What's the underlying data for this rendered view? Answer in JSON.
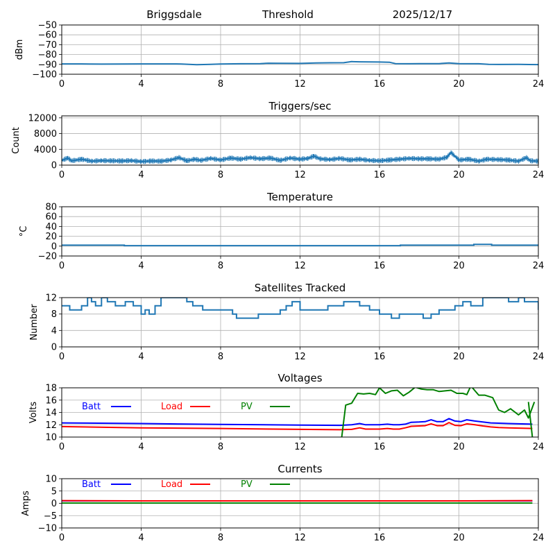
{
  "header": {
    "site": "Briggsdale",
    "mode": "Threshold",
    "date": "2025/12/17"
  },
  "colors": {
    "series_default": "#1f77b4",
    "batt": "#0000ff",
    "load": "#ff0000",
    "pv": "#008000",
    "grid": "#b0b0b0"
  },
  "chart_data": [
    {
      "type": "line",
      "title": "",
      "ylabel": "dBm",
      "xlabel": "",
      "xlim": [
        0,
        24
      ],
      "ylim": [
        -100,
        -50
      ],
      "xticks": [
        "0",
        "4",
        "8",
        "12",
        "16",
        "20",
        "24"
      ],
      "yticks": [
        "−100",
        "−90",
        "−80",
        "−70",
        "−60",
        "−50"
      ],
      "ytick_values": [
        -100,
        -90,
        -80,
        -70,
        -60,
        -50
      ],
      "grid": true,
      "series": [
        {
          "name": "dBm",
          "color": "#1f77b4",
          "x": [
            0,
            1,
            2,
            3,
            4,
            5,
            6,
            6.8,
            7.5,
            8,
            9,
            10,
            10.4,
            11,
            12,
            12.8,
            13.5,
            14.2,
            14.6,
            15,
            15.5,
            16,
            16.5,
            16.8,
            17.5,
            18,
            19,
            19.5,
            20,
            21,
            21.5,
            22,
            23,
            24
          ],
          "values": [
            -89.5,
            -89.5,
            -89.7,
            -89.6,
            -89.5,
            -89.5,
            -89.6,
            -90.3,
            -90,
            -89.6,
            -89.4,
            -89.2,
            -88.8,
            -88.9,
            -89,
            -88.5,
            -88.4,
            -88.3,
            -87.2,
            -87.4,
            -87.5,
            -87.6,
            -87.8,
            -89.2,
            -89.4,
            -89.3,
            -89.2,
            -88.5,
            -89.3,
            -89.4,
            -90,
            -90.1,
            -90,
            -90.2
          ]
        }
      ]
    },
    {
      "type": "line",
      "title": "Triggers/sec",
      "ylabel": "Count",
      "xlabel": "",
      "xlim": [
        0,
        24
      ],
      "ylim": [
        0,
        12500
      ],
      "xticks": [
        "0",
        "4",
        "8",
        "12",
        "16",
        "20",
        "24"
      ],
      "yticks": [
        "0",
        "4000",
        "8000",
        "12000"
      ],
      "ytick_values": [
        0,
        4000,
        8000,
        12000
      ],
      "grid": true,
      "series": [
        {
          "name": "Count",
          "color": "#1f77b4",
          "x": [
            0,
            0.3,
            0.5,
            1,
            1.5,
            2,
            2.5,
            3,
            3.5,
            4,
            4.5,
            5,
            5.5,
            5.9,
            6.3,
            6.7,
            7,
            7.5,
            8,
            8.5,
            9,
            9.5,
            10,
            10.5,
            11,
            11.5,
            12,
            12.4,
            12.7,
            13,
            13.5,
            14,
            14.5,
            15,
            15.5,
            16,
            16.5,
            17,
            17.5,
            18,
            18.5,
            19,
            19.4,
            19.6,
            20,
            20.5,
            21,
            21.4,
            22,
            22.5,
            23,
            23.4,
            23.6,
            24
          ],
          "values": [
            1200,
            1800,
            1100,
            1500,
            1000,
            1150,
            1100,
            1050,
            1150,
            900,
            1050,
            1000,
            1300,
            1900,
            1100,
            1500,
            1200,
            1700,
            1300,
            1800,
            1500,
            1900,
            1600,
            1800,
            1200,
            1800,
            1500,
            1700,
            2300,
            1600,
            1400,
            1700,
            1300,
            1500,
            1200,
            1100,
            1300,
            1500,
            1700,
            1600,
            1600,
            1500,
            2000,
            3200,
            1300,
            1500,
            1000,
            1500,
            1400,
            1300,
            1000,
            1900,
            1100,
            1000
          ]
        }
      ]
    },
    {
      "type": "line",
      "title": "Temperature",
      "ylabel": "°C",
      "xlabel": "",
      "xlim": [
        0,
        24
      ],
      "ylim": [
        -20,
        80
      ],
      "xticks": [
        "0",
        "4",
        "8",
        "12",
        "16",
        "20",
        "24"
      ],
      "yticks": [
        "−20",
        "0",
        "20",
        "40",
        "60",
        "80"
      ],
      "ytick_values": [
        -20,
        0,
        20,
        40,
        60,
        80
      ],
      "grid": true,
      "series": [
        {
          "name": "°C",
          "color": "#1f77b4",
          "x": [
            0,
            3.1,
            3.15,
            17.0,
            17.05,
            20.7,
            20.75,
            21.6,
            21.65,
            24
          ],
          "values": [
            2,
            2,
            1,
            1,
            2,
            2,
            3.5,
            3.5,
            2,
            2
          ]
        }
      ]
    },
    {
      "type": "line",
      "title": "Satellites Tracked",
      "ylabel": "Number",
      "xlabel": "",
      "xlim": [
        0,
        24
      ],
      "ylim": [
        0,
        12
      ],
      "xticks": [
        "0",
        "4",
        "8",
        "12",
        "16",
        "20",
        "24"
      ],
      "yticks": [
        "0",
        "4",
        "8",
        "12"
      ],
      "ytick_values": [
        0,
        4,
        8,
        12
      ],
      "grid": true,
      "series": [
        {
          "name": "Number",
          "color": "#1f77b4",
          "x": [
            0,
            0.4,
            1.0,
            1.3,
            1.5,
            1.7,
            2.0,
            2.3,
            2.7,
            3.2,
            3.6,
            4.0,
            4.2,
            4.4,
            4.7,
            5.0,
            5.2,
            5.7,
            6.3,
            6.6,
            7.1,
            7.6,
            8.0,
            8.6,
            8.8,
            9.9,
            10.1,
            11.0,
            11.3,
            11.6,
            12.0,
            12.8,
            13.4,
            13.8,
            14.2,
            15.0,
            15.5,
            16.0,
            16.4,
            16.6,
            17.0,
            17.8,
            18.2,
            18.6,
            19.0,
            19.4,
            19.8,
            20.2,
            20.6,
            21.2,
            22.5,
            23.0,
            23.3,
            23.8,
            24
          ],
          "values": [
            10,
            9,
            10,
            12,
            11,
            10,
            12,
            11,
            10,
            11,
            10,
            8,
            9,
            8,
            10,
            12,
            12,
            12,
            11,
            10,
            9,
            9,
            9,
            8,
            7,
            8,
            8,
            9,
            10,
            11,
            9,
            9,
            10,
            10,
            11,
            10,
            9,
            8,
            8,
            7,
            8,
            8,
            7,
            8,
            9,
            9,
            10,
            11,
            10,
            12,
            11,
            12,
            11,
            11,
            9
          ]
        }
      ]
    },
    {
      "type": "line",
      "title": "Voltages",
      "ylabel": "Volts",
      "xlabel": "",
      "xlim": [
        0,
        24
      ],
      "ylim": [
        10,
        18
      ],
      "xticks": [
        "0",
        "4",
        "8",
        "12",
        "16",
        "20",
        "24"
      ],
      "yticks": [
        "10",
        "12",
        "14",
        "16",
        "18"
      ],
      "ytick_values": [
        10,
        12,
        14,
        16,
        18
      ],
      "grid": true,
      "legend": [
        {
          "label": "Batt",
          "color": "#0000ff"
        },
        {
          "label": "Load",
          "color": "#ff0000"
        },
        {
          "label": "PV",
          "color": "#008000"
        }
      ],
      "series": [
        {
          "name": "Batt",
          "color": "#0000ff",
          "x": [
            0,
            4,
            8,
            12,
            14,
            14.6,
            15,
            15.3,
            15.6,
            16,
            16.4,
            16.7,
            17,
            17.3,
            17.6,
            18,
            18.3,
            18.6,
            18.9,
            19.2,
            19.5,
            19.8,
            20.1,
            20.4,
            20.8,
            21.2,
            21.6,
            22,
            22.5,
            23,
            23.7
          ],
          "values": [
            12.3,
            12.2,
            12.05,
            11.95,
            11.9,
            12.0,
            12.2,
            12.0,
            12.0,
            12.0,
            12.1,
            12.0,
            12.0,
            12.1,
            12.4,
            12.45,
            12.5,
            12.8,
            12.5,
            12.5,
            13.0,
            12.6,
            12.5,
            12.8,
            12.6,
            12.45,
            12.3,
            12.25,
            12.2,
            12.15,
            12.1
          ]
        },
        {
          "name": "Load",
          "color": "#ff0000",
          "x": [
            0,
            4,
            8,
            12,
            14,
            14.6,
            15,
            15.3,
            15.6,
            16,
            16.4,
            16.7,
            17,
            17.3,
            17.6,
            18,
            18.3,
            18.6,
            18.9,
            19.2,
            19.5,
            19.8,
            20.1,
            20.4,
            20.8,
            21.2,
            21.6,
            22,
            22.5,
            23,
            23.7
          ],
          "values": [
            11.7,
            11.5,
            11.4,
            11.25,
            11.2,
            11.25,
            11.5,
            11.3,
            11.3,
            11.3,
            11.4,
            11.3,
            11.3,
            11.5,
            11.75,
            11.8,
            11.85,
            12.15,
            11.85,
            11.85,
            12.35,
            11.9,
            11.85,
            12.15,
            12.0,
            11.8,
            11.65,
            11.55,
            11.5,
            11.45,
            11.4
          ]
        },
        {
          "name": "PV",
          "color": "#008000",
          "x": [
            14.1,
            14.3,
            14.6,
            14.9,
            15.2,
            15.5,
            15.8,
            16.0,
            16.3,
            16.6,
            16.9,
            17.2,
            17.5,
            17.8,
            18.1,
            18.4,
            18.7,
            19.0,
            19.3,
            19.6,
            19.9,
            20.2,
            20.4,
            20.6,
            21.0,
            21.3,
            21.7,
            22.0,
            22.3,
            22.6,
            23.0,
            23.3,
            23.5,
            23.8
          ],
          "values": [
            10,
            15.2,
            15.5,
            17.1,
            17.0,
            17.1,
            16.9,
            18.0,
            17.1,
            17.5,
            17.6,
            16.7,
            17.3,
            18.1,
            17.8,
            17.7,
            17.7,
            17.4,
            17.5,
            17.6,
            17.1,
            17.1,
            16.9,
            18.3,
            16.8,
            16.8,
            16.4,
            14.4,
            14.0,
            14.6,
            13.6,
            14.4,
            13.1,
            15.7
          ]
        },
        {
          "name": "PV-drop",
          "color": "#008000",
          "x": [
            23.5,
            23.7
          ],
          "values": [
            15.7,
            10
          ]
        }
      ]
    },
    {
      "type": "line",
      "title": "Currents",
      "ylabel": "Amps",
      "xlabel": "",
      "xlim": [
        0,
        24
      ],
      "ylim": [
        -10,
        10
      ],
      "xticks": [
        "0",
        "4",
        "8",
        "12",
        "16",
        "20",
        "24"
      ],
      "yticks": [
        "−10",
        "−5",
        "0",
        "5",
        "10"
      ],
      "ytick_values": [
        -10,
        -5,
        0,
        5,
        10
      ],
      "grid": true,
      "legend": [
        {
          "label": "Batt",
          "color": "#0000ff"
        },
        {
          "label": "Load",
          "color": "#ff0000"
        },
        {
          "label": "PV",
          "color": "#008000"
        }
      ],
      "series": [
        {
          "name": "Batt",
          "color": "#0000ff",
          "x": [
            0,
            23.7
          ],
          "values": [
            1.0,
            1.0
          ]
        },
        {
          "name": "Load",
          "color": "#ff0000",
          "x": [
            0,
            4,
            8,
            12,
            16,
            20,
            23.7
          ],
          "values": [
            1.1,
            1.0,
            1.0,
            1.0,
            1.0,
            1.0,
            1.1
          ]
        },
        {
          "name": "PV",
          "color": "#008000",
          "x": [
            0,
            23.7
          ],
          "values": [
            0.1,
            0.1
          ]
        }
      ]
    }
  ]
}
